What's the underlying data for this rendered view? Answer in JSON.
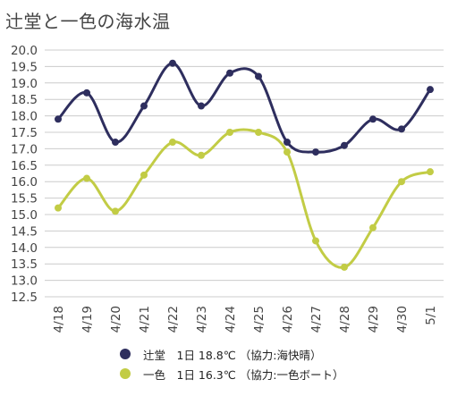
{
  "chart_data": {
    "type": "line",
    "title": "辻堂と一色の海水温",
    "categories": [
      "4/18",
      "4/19",
      "4/20",
      "4/21",
      "4/22",
      "4/23",
      "4/24",
      "4/25",
      "4/26",
      "4/27",
      "4/28",
      "4/29",
      "4/30",
      "5/1"
    ],
    "ylim": [
      12.5,
      20.0
    ],
    "ytick_step": 0.5,
    "grid": "horizontal",
    "legend_position": "bottom",
    "xlabel": "",
    "ylabel": "",
    "series": [
      {
        "name": "辻堂",
        "legend_text": "辻堂　1日 18.8℃ （協力:海快晴）",
        "color": "#2e2e5e",
        "values": [
          17.9,
          18.7,
          17.2,
          18.3,
          19.6,
          18.3,
          19.3,
          19.2,
          17.2,
          16.9,
          17.1,
          17.9,
          17.6,
          18.8
        ]
      },
      {
        "name": "一色",
        "legend_text": "一色　1日 16.3℃ （協力:一色ボート）",
        "color": "#c2cc45",
        "values": [
          15.2,
          16.1,
          15.1,
          16.2,
          17.2,
          16.8,
          17.5,
          17.5,
          16.9,
          14.2,
          13.4,
          14.6,
          16.0,
          16.3
        ]
      }
    ]
  }
}
